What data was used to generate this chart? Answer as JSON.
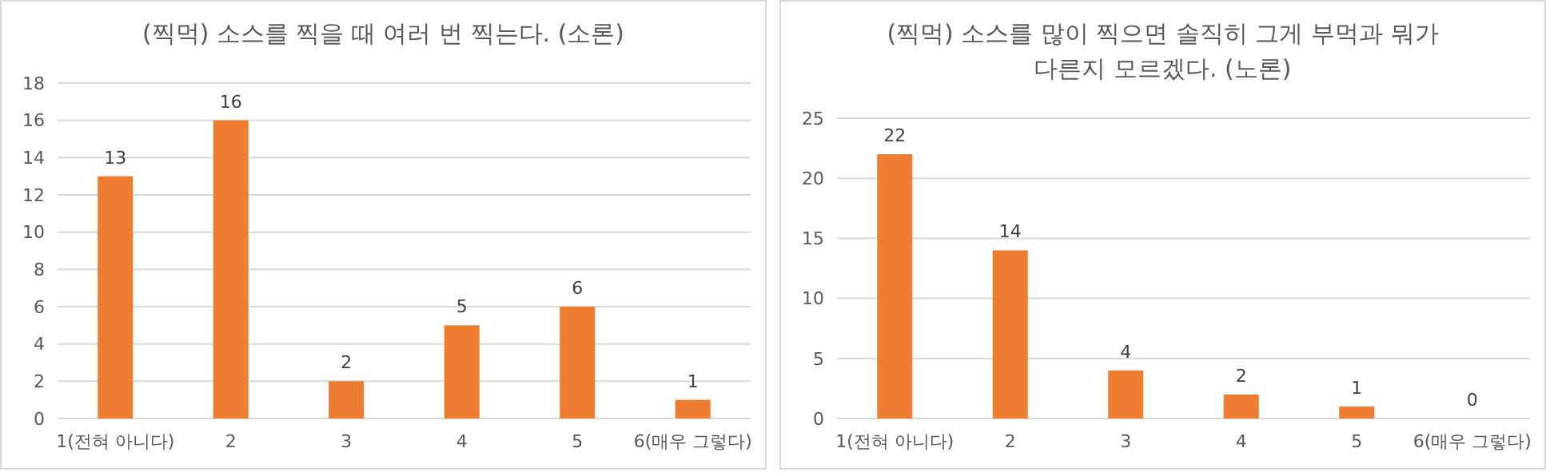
{
  "chart_data": [
    {
      "type": "bar",
      "title": "(찍먹) 소스를 찍을 때 여러 번 찍는다. (소론)",
      "categories": [
        "1(전혀 아니다)",
        "2",
        "3",
        "4",
        "5",
        "6(매우 그렇다)"
      ],
      "values": [
        13,
        16,
        2,
        5,
        6,
        1
      ],
      "color": "#ed7d31",
      "ylim": [
        0,
        18
      ],
      "yticks": [
        0,
        2,
        4,
        6,
        8,
        10,
        12,
        14,
        16,
        18
      ],
      "grid": "y",
      "data_labels": true
    },
    {
      "type": "bar",
      "title": "(찍먹) 소스를 많이 찍으면 솔직히 그게 부먹과 뭐가\n다른지 모르겠다. (노론)",
      "categories": [
        "1(전혀 아니다)",
        "2",
        "3",
        "4",
        "5",
        "6(매우 그렇다)"
      ],
      "values": [
        22,
        14,
        4,
        2,
        1,
        0
      ],
      "color": "#ed7d31",
      "ylim": [
        0,
        25
      ],
      "yticks": [
        0,
        5,
        10,
        15,
        20,
        25
      ],
      "grid": "y",
      "data_labels": true
    }
  ]
}
